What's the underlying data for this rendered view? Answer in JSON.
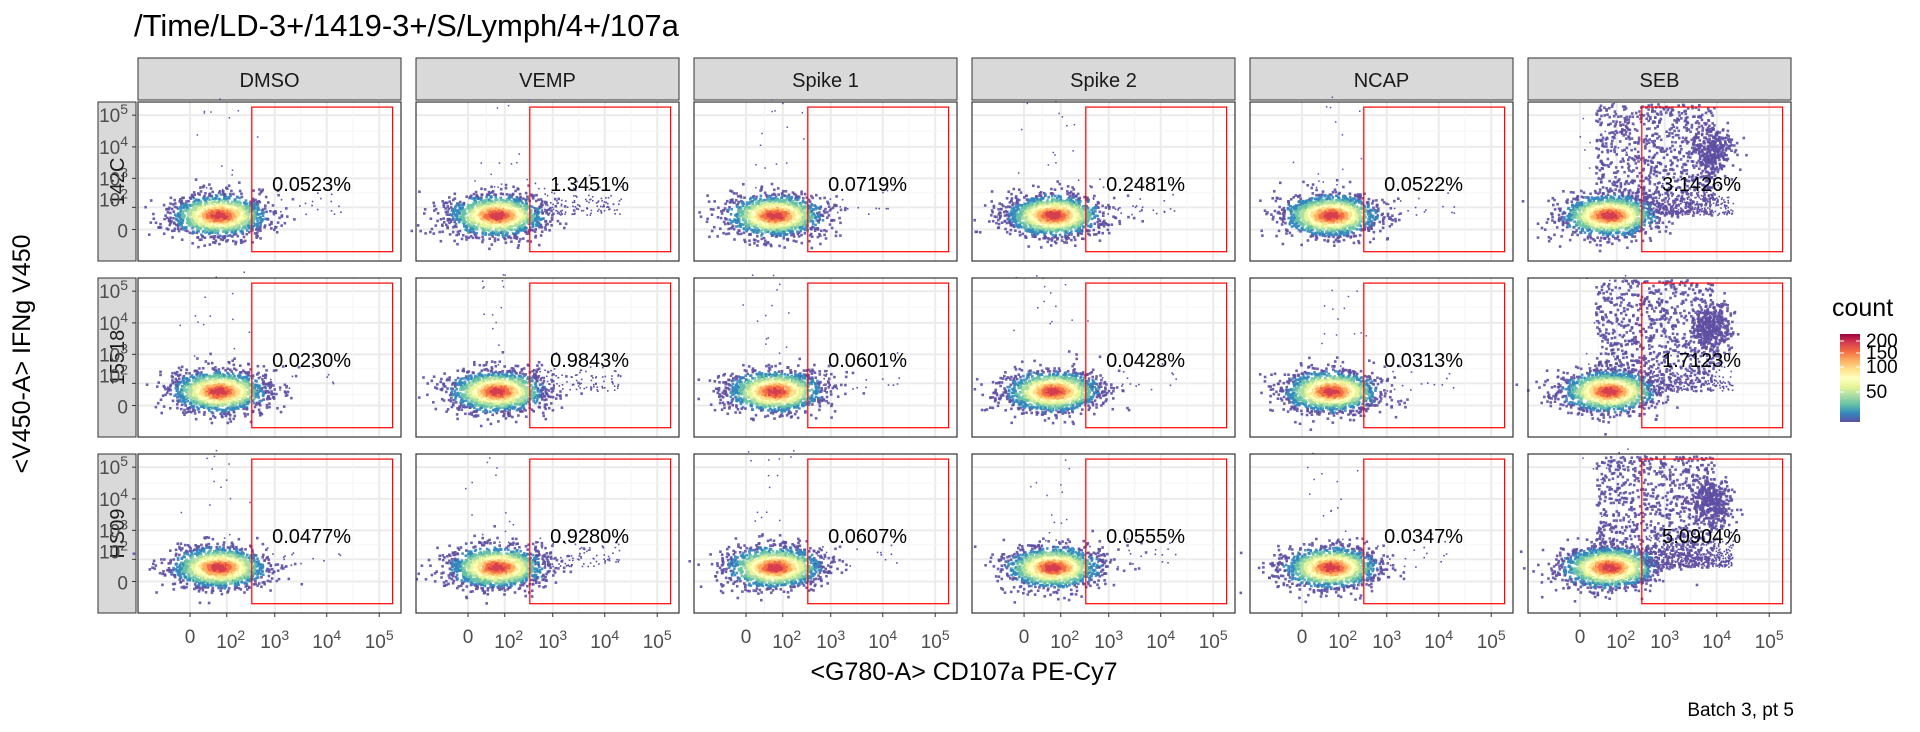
{
  "chart_data": {
    "type": "heatmap",
    "subtype": "faceted flow-cytometry density scatter with gates",
    "title": "/Time/LD-3+/1419-3+/S/Lymph/4+/107a",
    "xlabel": "<G780-A> CD107a PE-Cy7",
    "ylabel": "<V450-A> IFNg V450",
    "caption": "Batch 3, pt 5",
    "columns": [
      "DMSO",
      "VEMP",
      "Spike 1",
      "Spike 2",
      "NCAP",
      "SEB"
    ],
    "rows": [
      "142C",
      "15518",
      "HS09"
    ],
    "x_tick_labels": [
      "0",
      "10^2",
      "10^3",
      "10^4",
      "10^5"
    ],
    "y_tick_labels": [
      "0",
      "10^2",
      "10^3",
      "10^4",
      "10^5"
    ],
    "x_scale": "biexponential",
    "y_scale": "biexponential",
    "gate": {
      "x_min": 350,
      "x_max": 180000,
      "y_min": -100,
      "y_max": 180000
    },
    "gate_percentages": [
      [
        "0.0523%",
        "1.3451%",
        "0.0719%",
        "0.2481%",
        "0.0522%",
        "3.1426%"
      ],
      [
        "0.0230%",
        "0.9843%",
        "0.0601%",
        "0.0428%",
        "0.0313%",
        "1.7123%"
      ],
      [
        "0.0477%",
        "0.9280%",
        "0.0607%",
        "0.0555%",
        "0.0347%",
        "5.0904%"
      ]
    ],
    "legend": {
      "title": "count",
      "ticks": [
        "50",
        "100",
        "150",
        "200"
      ],
      "position": "right",
      "palette": "spectral"
    },
    "grid": true
  },
  "colors": {
    "gate_stroke": "#ff0000",
    "strip_fill": "#d9d9d9",
    "grid": "#ebebeb",
    "spectral": [
      "#5e4fa2",
      "#3288bd",
      "#66c2a5",
      "#abdda4",
      "#e6f598",
      "#ffffbf",
      "#fee08b",
      "#fdae61",
      "#f46d43",
      "#d53e4f",
      "#9e0142"
    ]
  }
}
